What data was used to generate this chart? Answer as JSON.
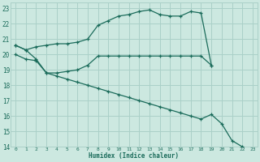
{
  "xlabel": "Humidex (Indice chaleur)",
  "bg_color": "#cce8e0",
  "grid_color": "#aad0c8",
  "line_color": "#1a6b5a",
  "line1_x": [
    0,
    1,
    2,
    3,
    4,
    5,
    6,
    7,
    8,
    9,
    10,
    11,
    12,
    13,
    14,
    15,
    16,
    17,
    18,
    19
  ],
  "line1_y": [
    20.6,
    20.3,
    20.5,
    20.6,
    20.7,
    20.7,
    20.8,
    21.0,
    21.9,
    22.2,
    22.5,
    22.6,
    22.8,
    22.9,
    22.6,
    22.5,
    22.5,
    22.8,
    22.7,
    19.3
  ],
  "line2_x": [
    0,
    1,
    2,
    3,
    4,
    5,
    6,
    7,
    8,
    9,
    10,
    11,
    12,
    13,
    14,
    15,
    16,
    17,
    18,
    19
  ],
  "line2_y": [
    20.0,
    19.7,
    19.6,
    18.8,
    18.8,
    18.9,
    19.0,
    19.3,
    19.9,
    19.9,
    19.9,
    19.9,
    19.9,
    19.9,
    19.9,
    19.9,
    19.9,
    19.9,
    19.9,
    19.3
  ],
  "line3_x": [
    0,
    1,
    2,
    3,
    4,
    5,
    6,
    7,
    8,
    9,
    10,
    11,
    12,
    13,
    14,
    15,
    16,
    17,
    18,
    19,
    20,
    21,
    22,
    23
  ],
  "line3_y": [
    20.6,
    20.3,
    19.7,
    18.8,
    18.6,
    18.4,
    18.2,
    18.0,
    17.8,
    17.6,
    17.4,
    17.2,
    17.0,
    16.8,
    16.6,
    16.4,
    16.2,
    16.0,
    15.8,
    16.1,
    15.5,
    14.4,
    14.0,
    13.8
  ],
  "xlim": [
    -0.5,
    23.5
  ],
  "ylim": [
    14,
    23.4
  ],
  "xticks": [
    0,
    1,
    2,
    3,
    4,
    5,
    6,
    7,
    8,
    9,
    10,
    11,
    12,
    13,
    14,
    15,
    16,
    17,
    18,
    19,
    20,
    21,
    22,
    23
  ],
  "yticks": [
    14,
    15,
    16,
    17,
    18,
    19,
    20,
    21,
    22,
    23
  ]
}
